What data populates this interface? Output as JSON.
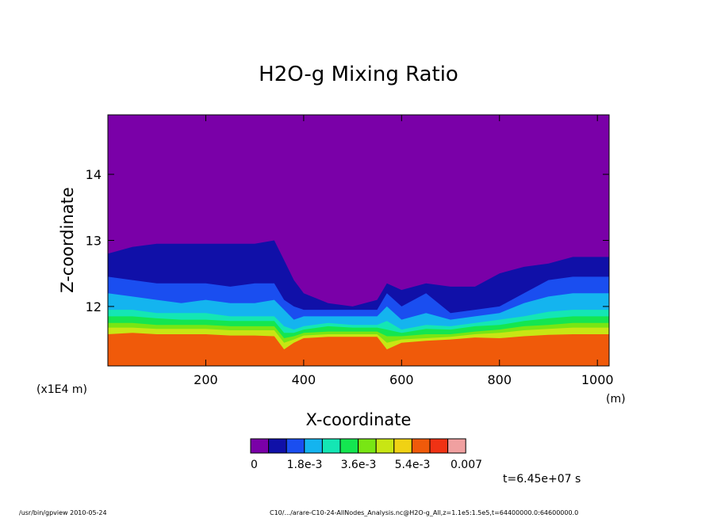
{
  "chart_data": {
    "type": "heatmap",
    "title": "H2O-g Mixing Ratio",
    "xlabel": "X-coordinate",
    "ylabel": "Z-coordinate",
    "x_unit": "(m)",
    "y_unit": "(x1E4 m)",
    "xlim": [
      0,
      1024
    ],
    "ylim": [
      11.1,
      14.9
    ],
    "x_ticks": [
      200,
      400,
      600,
      800,
      1000
    ],
    "y_ticks": [
      12,
      13,
      14
    ],
    "x_tick_labels": [
      "200",
      "400",
      "600",
      "800",
      "1000"
    ],
    "y_tick_labels": [
      "12",
      "13",
      "14"
    ],
    "colorbar": {
      "colors": [
        "#7a00a8",
        "#1010a8",
        "#1a4ef0",
        "#14b4ef",
        "#14e6b4",
        "#14e650",
        "#78e614",
        "#c8e614",
        "#f0d214",
        "#f05a0a",
        "#f03214",
        "#f0a0a0"
      ],
      "labels": [
        "0",
        "1.8e-3",
        "3.6e-3",
        "5.4e-3",
        "0.007"
      ]
    },
    "time_label": "t=6.45e+07 s",
    "contour_boundaries": {
      "x": [
        0,
        50,
        100,
        150,
        200,
        250,
        300,
        340,
        360,
        380,
        400,
        450,
        500,
        550,
        570,
        600,
        650,
        700,
        750,
        800,
        850,
        900,
        950,
        1024
      ],
      "top": [
        12.8,
        12.9,
        12.95,
        12.95,
        12.95,
        12.95,
        12.95,
        13.0,
        12.7,
        12.4,
        12.2,
        12.05,
        12.0,
        12.1,
        12.35,
        12.25,
        12.35,
        12.3,
        12.3,
        12.5,
        12.6,
        12.65,
        12.75,
        12.75
      ],
      "dark_blue_low": [
        12.45,
        12.4,
        12.35,
        12.35,
        12.35,
        12.3,
        12.35,
        12.35,
        12.1,
        12.0,
        11.95,
        11.95,
        11.95,
        11.95,
        12.2,
        12.0,
        12.2,
        11.9,
        11.95,
        12.0,
        12.2,
        12.4,
        12.45,
        12.45
      ],
      "blue_low": [
        12.2,
        12.15,
        12.1,
        12.05,
        12.1,
        12.05,
        12.05,
        12.1,
        11.95,
        11.8,
        11.85,
        11.85,
        11.85,
        11.85,
        12.0,
        11.8,
        11.9,
        11.8,
        11.85,
        11.9,
        12.05,
        12.15,
        12.2,
        12.2
      ],
      "cyan_low": [
        11.95,
        11.95,
        11.9,
        11.9,
        11.9,
        11.85,
        11.85,
        11.85,
        11.7,
        11.65,
        11.7,
        11.75,
        11.72,
        11.72,
        11.78,
        11.65,
        11.72,
        11.7,
        11.75,
        11.8,
        11.85,
        11.92,
        11.95,
        11.95
      ],
      "teal_low": [
        11.85,
        11.85,
        11.82,
        11.8,
        11.8,
        11.78,
        11.78,
        11.78,
        11.6,
        11.6,
        11.65,
        11.7,
        11.68,
        11.68,
        11.65,
        11.6,
        11.66,
        11.65,
        11.7,
        11.72,
        11.78,
        11.82,
        11.85,
        11.85
      ],
      "green_low": [
        11.75,
        11.75,
        11.72,
        11.72,
        11.72,
        11.7,
        11.7,
        11.7,
        11.52,
        11.55,
        11.6,
        11.62,
        11.62,
        11.62,
        11.55,
        11.55,
        11.58,
        11.58,
        11.62,
        11.65,
        11.7,
        11.72,
        11.75,
        11.75
      ],
      "lime_low": [
        11.68,
        11.68,
        11.66,
        11.66,
        11.66,
        11.64,
        11.64,
        11.64,
        11.45,
        11.5,
        11.56,
        11.58,
        11.58,
        11.58,
        11.45,
        11.5,
        11.52,
        11.54,
        11.58,
        11.6,
        11.64,
        11.66,
        11.68,
        11.68
      ],
      "yellow_low": [
        11.58,
        11.6,
        11.58,
        11.58,
        11.58,
        11.56,
        11.56,
        11.55,
        11.35,
        11.45,
        11.52,
        11.54,
        11.54,
        11.54,
        11.35,
        11.45,
        11.48,
        11.5,
        11.53,
        11.52,
        11.55,
        11.57,
        11.58,
        11.58
      ]
    }
  },
  "footer": {
    "left": "/usr/bin/gpview  2010-05-24",
    "right": "C10/.../arare-C10-24-AllNodes_Analysis.nc@H2O-g_All,z=1.1e5:1.5e5,t=64400000.0:64600000.0"
  }
}
